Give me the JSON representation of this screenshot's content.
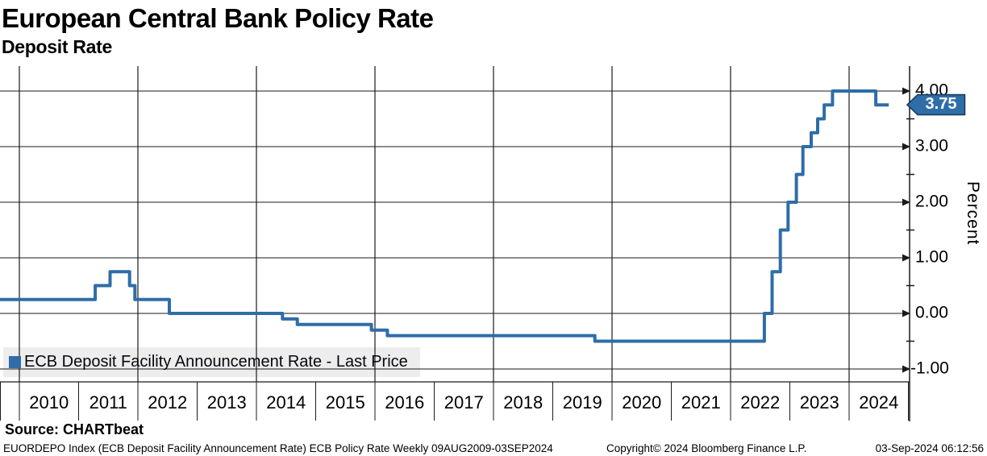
{
  "header": {
    "title": "European Central Bank Policy Rate",
    "subtitle": "Deposit Rate"
  },
  "chart_data": {
    "type": "line",
    "line_style": "step-after",
    "title": "European Central Bank Policy Rate",
    "subtitle": "Deposit Rate",
    "ylabel": "Percent",
    "ylim": [
      -1.25,
      4.45
    ],
    "xlim": [
      2009.67,
      2024.75
    ],
    "grid": "on",
    "y_major_ticks": [
      4.0,
      3.0,
      2.0,
      1.0,
      0.0,
      -1.0
    ],
    "y_tick_labels": [
      "4.00",
      "3.00",
      "2.00",
      "1.00",
      "0.00",
      "-1.00"
    ],
    "y_minor_ticks": [
      3.5,
      2.5,
      1.5,
      0.5,
      -0.5
    ],
    "x_year_labels": [
      "2010",
      "2011",
      "2012",
      "2013",
      "2014",
      "2015",
      "2016",
      "2017",
      "2018",
      "2019",
      "2020",
      "2021",
      "2022",
      "2023",
      "2024"
    ],
    "x_gridline_years": [
      2010,
      2012,
      2014,
      2016,
      2018,
      2020,
      2022,
      2024
    ],
    "series": [
      {
        "name": "ECB Deposit Facility Announcement Rate - Last Price",
        "color": "#2e6da8",
        "points": [
          [
            2009.67,
            0.25
          ],
          [
            2011.28,
            0.5
          ],
          [
            2011.53,
            0.75
          ],
          [
            2011.86,
            0.5
          ],
          [
            2011.95,
            0.25
          ],
          [
            2012.53,
            0.0
          ],
          [
            2014.44,
            -0.1
          ],
          [
            2014.69,
            -0.2
          ],
          [
            2015.94,
            -0.3
          ],
          [
            2016.21,
            -0.4
          ],
          [
            2019.71,
            -0.5
          ],
          [
            2022.57,
            0.0
          ],
          [
            2022.7,
            0.75
          ],
          [
            2022.84,
            1.5
          ],
          [
            2022.97,
            2.0
          ],
          [
            2023.11,
            2.5
          ],
          [
            2023.22,
            3.0
          ],
          [
            2023.36,
            3.25
          ],
          [
            2023.47,
            3.5
          ],
          [
            2023.58,
            3.75
          ],
          [
            2023.72,
            4.0
          ],
          [
            2024.45,
            3.75
          ]
        ],
        "x_end": 2024.67,
        "last_price": 3.75
      }
    ],
    "legend_position": "bottom-left"
  },
  "legend": {
    "label": "ECB Deposit Facility Announcement Rate - Last Price",
    "swatch_color": "#2e6da8",
    "background": "#ededed"
  },
  "axis": {
    "percent_label": "Percent",
    "badge_value": "3.75",
    "badge_fill": "#2e6da8",
    "badge_border": "#17375e"
  },
  "footer": {
    "source": "Source: CHARTbeat",
    "left": "EUORDEPO Index (ECB Deposit Facility Announcement Rate) ECB Policy Rate  Weekly 09AUG2009-03SEP2024",
    "copyright": "Copyright© 2024 Bloomberg Finance L.P.",
    "datetime": "03-Sep-2024 06:12:56"
  },
  "colors": {
    "line": "#2e6da8",
    "grid": "#1a1a1a",
    "text": "#000000"
  }
}
